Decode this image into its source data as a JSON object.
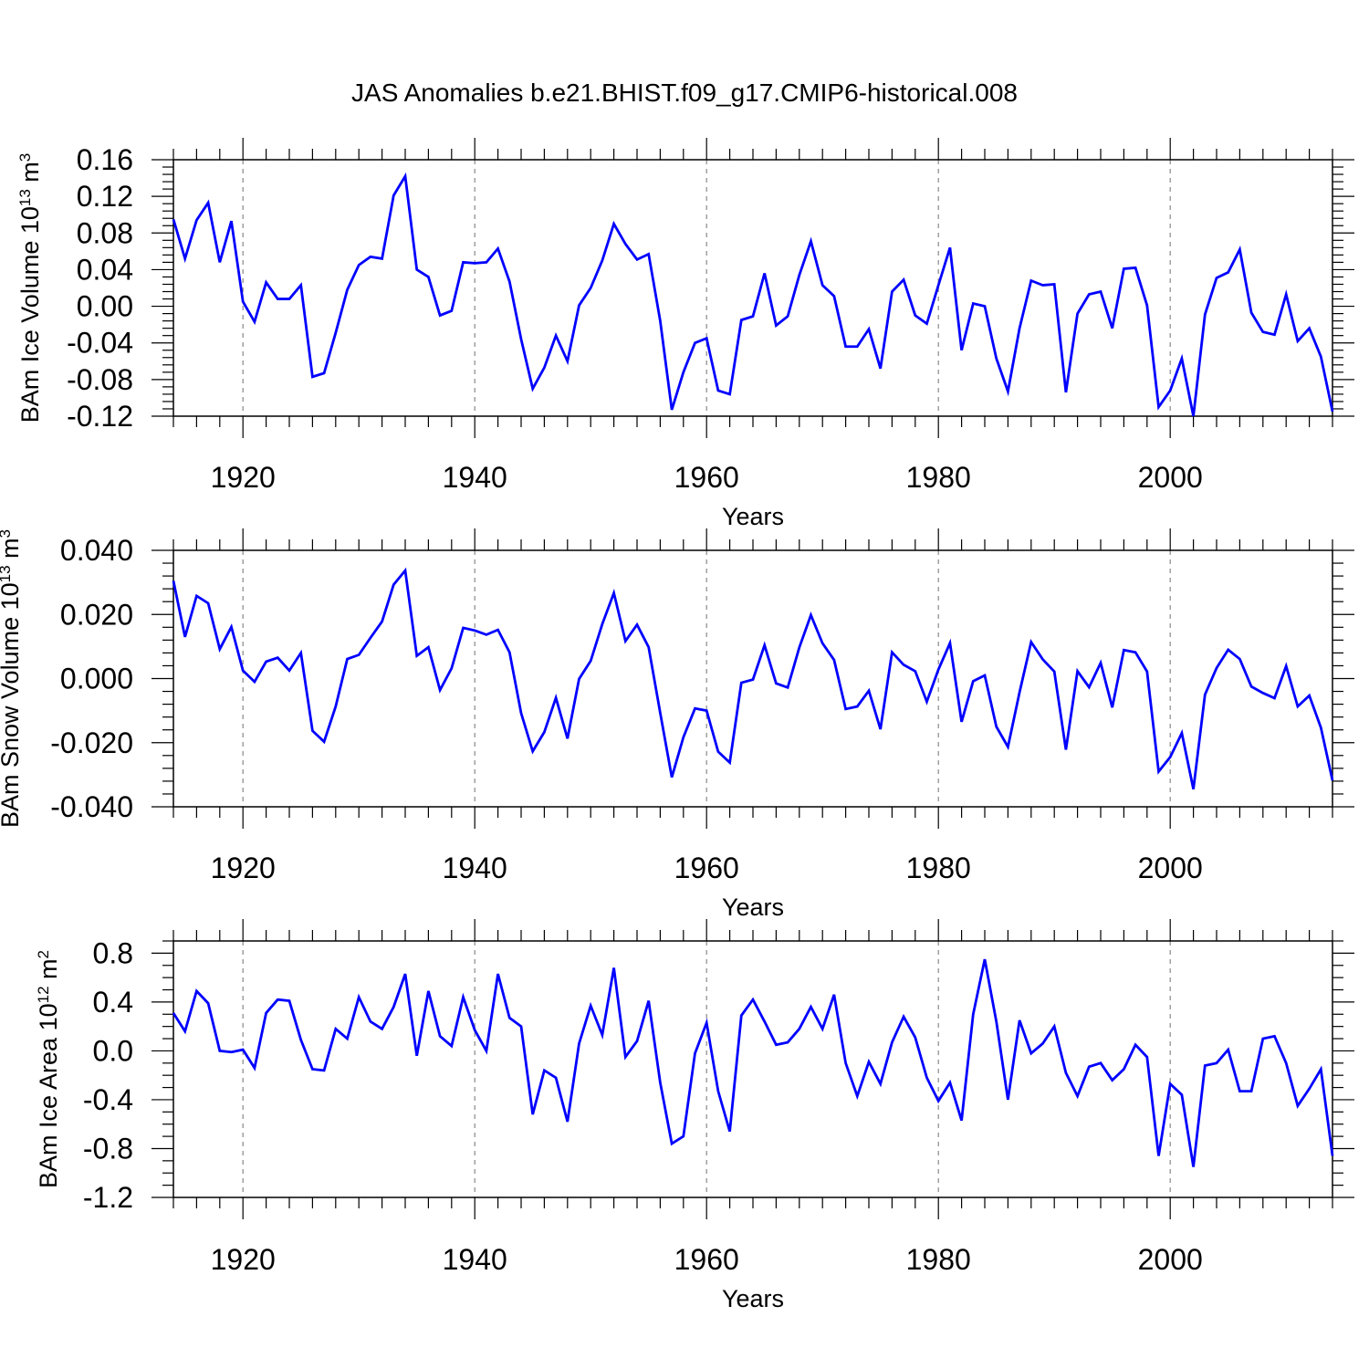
{
  "figure_title": "JAS Anomalies b.e21.BHIST.f09_g17.CMIP6-historical.008",
  "line_color": "#0000ff",
  "chart_data": [
    {
      "type": "line",
      "title": "",
      "ylabel_main": "BAm Ice Volume 10",
      "ylabel_sup": "13",
      "ylabel_unit": " m",
      "ylabel_unit_sup": "3",
      "xlabel": "Years",
      "xlim": [
        1914,
        2014
      ],
      "ylim": [
        -0.12,
        0.16
      ],
      "xticks": [
        "1920",
        "1940",
        "1960",
        "1980",
        "2000"
      ],
      "yticks": [
        "0.16",
        "0.12",
        "0.08",
        "0.04",
        "0.00",
        "-0.04",
        "-0.08",
        "-0.12"
      ],
      "grid": "dashed vertical lines at major x ticks",
      "series": [
        {
          "color": "#0000ff",
          "x_start": 1914,
          "values": [
            0.095,
            0.052,
            0.094,
            0.113,
            0.048,
            0.093,
            0.005,
            -0.017,
            0.026,
            0.008,
            0.008,
            0.023,
            -0.077,
            -0.073,
            -0.029,
            0.018,
            0.045,
            0.054,
            0.052,
            0.121,
            0.142,
            0.04,
            0.032,
            -0.01,
            -0.005,
            0.048,
            0.047,
            0.048,
            0.063,
            0.027,
            -0.036,
            -0.09,
            -0.067,
            -0.032,
            -0.06,
            0.001,
            0.02,
            0.05,
            0.09,
            0.068,
            0.051,
            0.057,
            -0.016,
            -0.113,
            -0.072,
            -0.04,
            -0.035,
            -0.092,
            -0.096,
            -0.015,
            -0.011,
            0.036,
            -0.021,
            -0.011,
            0.034,
            0.071,
            0.023,
            0.011,
            -0.044,
            -0.044,
            -0.025,
            -0.068,
            0.016,
            0.029,
            -0.01,
            -0.019,
            0.023,
            0.064,
            -0.048,
            0.003,
            0.0,
            -0.057,
            -0.093,
            -0.024,
            0.028,
            0.023,
            0.024,
            -0.094,
            -0.008,
            0.013,
            0.016,
            -0.024,
            0.041,
            0.042,
            0.001,
            -0.11,
            -0.092,
            -0.057,
            -0.12,
            -0.009,
            0.031,
            0.037,
            0.062,
            -0.007,
            -0.028,
            -0.031,
            0.013,
            -0.038,
            -0.024,
            -0.055,
            -0.115
          ]
        }
      ]
    },
    {
      "type": "line",
      "title": "",
      "ylabel_main": "BAm Snow Volume 10",
      "ylabel_sup": "13",
      "ylabel_unit": " m",
      "ylabel_unit_sup": "3",
      "xlabel": "Years",
      "xlim": [
        1914,
        2014
      ],
      "ylim": [
        -0.04,
        0.04
      ],
      "xticks": [
        "1920",
        "1940",
        "1960",
        "1980",
        "2000"
      ],
      "yticks": [
        "0.040",
        "0.020",
        "0.000",
        "-0.020",
        "-0.040"
      ],
      "grid": "dashed vertical lines at major x ticks",
      "series": [
        {
          "color": "#0000ff",
          "x_start": 1914,
          "values": [
            0.0305,
            0.013,
            0.0258,
            0.0235,
            0.0092,
            0.0161,
            0.0025,
            -0.001,
            0.0053,
            0.0065,
            0.0025,
            0.008,
            -0.0163,
            -0.0197,
            -0.0087,
            0.0061,
            0.0074,
            0.0127,
            0.0178,
            0.0293,
            0.0337,
            0.0071,
            0.0098,
            -0.0036,
            0.0032,
            0.0158,
            0.015,
            0.0137,
            0.0152,
            0.0082,
            -0.0108,
            -0.0227,
            -0.0167,
            -0.006,
            -0.0187,
            -0.0001,
            0.0055,
            0.017,
            0.0267,
            0.0117,
            0.0168,
            0.0098,
            -0.0107,
            -0.0308,
            -0.0183,
            -0.0093,
            -0.01,
            -0.0228,
            -0.0262,
            -0.0013,
            -0.0003,
            0.0104,
            -0.0015,
            -0.0028,
            0.0097,
            0.0198,
            0.011,
            0.0058,
            -0.0095,
            -0.0087,
            -0.0038,
            -0.0158,
            0.0082,
            0.0043,
            0.0023,
            -0.0072,
            0.0028,
            0.0111,
            -0.0135,
            -0.0008,
            0.001,
            -0.015,
            -0.0213,
            -0.0043,
            0.0114,
            0.006,
            0.0022,
            -0.0222,
            0.0023,
            -0.0027,
            0.0049,
            -0.009,
            0.0089,
            0.0082,
            0.0022,
            -0.029,
            -0.0245,
            -0.017,
            -0.0345,
            -0.005,
            0.0033,
            0.009,
            0.0061,
            -0.0025,
            -0.0045,
            -0.0061,
            0.0039,
            -0.0087,
            -0.0053,
            -0.0153,
            -0.0318
          ]
        }
      ]
    },
    {
      "type": "line",
      "title": "",
      "ylabel_main": "BAm Ice Area 10",
      "ylabel_sup": "12",
      "ylabel_unit": " m",
      "ylabel_unit_sup": "2",
      "xlabel": "Years",
      "xlim": [
        1914,
        2014
      ],
      "ylim": [
        -1.2,
        0.9
      ],
      "xticks": [
        "1920",
        "1940",
        "1960",
        "1980",
        "2000"
      ],
      "yticks": [
        "0.8",
        "0.4",
        "0.0",
        "-0.4",
        "-0.8",
        "-1.2"
      ],
      "grid": "dashed vertical lines at major x ticks",
      "series": [
        {
          "color": "#0000ff",
          "x_start": 1914,
          "values": [
            0.31,
            0.16,
            0.49,
            0.39,
            0.0,
            -0.01,
            0.01,
            -0.14,
            0.31,
            0.42,
            0.41,
            0.09,
            -0.15,
            -0.16,
            0.18,
            0.1,
            0.44,
            0.24,
            0.18,
            0.36,
            0.63,
            -0.04,
            0.49,
            0.12,
            0.04,
            0.44,
            0.17,
            0.0,
            0.63,
            0.27,
            0.2,
            -0.52,
            -0.16,
            -0.22,
            -0.58,
            0.06,
            0.37,
            0.13,
            0.68,
            -0.05,
            0.08,
            0.41,
            -0.26,
            -0.76,
            -0.7,
            -0.02,
            0.23,
            -0.33,
            -0.66,
            0.29,
            0.42,
            0.24,
            0.05,
            0.07,
            0.18,
            0.36,
            0.18,
            0.46,
            -0.1,
            -0.37,
            -0.09,
            -0.27,
            0.07,
            0.28,
            0.11,
            -0.22,
            -0.41,
            -0.26,
            -0.57,
            0.3,
            0.75,
            0.24,
            -0.4,
            0.25,
            -0.02,
            0.06,
            0.2,
            -0.18,
            -0.37,
            -0.13,
            -0.1,
            -0.24,
            -0.15,
            0.05,
            -0.05,
            -0.86,
            -0.27,
            -0.36,
            -0.95,
            -0.12,
            -0.1,
            0.01,
            -0.33,
            -0.33,
            0.1,
            0.12,
            -0.1,
            -0.45,
            -0.31,
            -0.15,
            -0.86
          ]
        }
      ]
    }
  ]
}
